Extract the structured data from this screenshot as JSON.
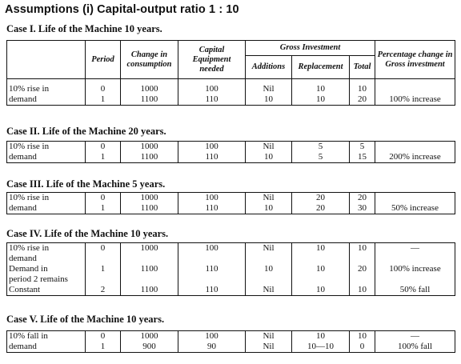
{
  "title": "Assumptions (i) Capital-output ratio 1 : 10",
  "columns": {
    "period": "Period",
    "change": "Change in consumption",
    "capital": "Capital Equipment needed",
    "gross": "Gross Investment",
    "additions": "Additions",
    "replacement": "Replacement",
    "total": "Total",
    "percentage": "Percentage change in Gross investment"
  },
  "cases": [
    {
      "title": "Case I. Life of the Machine 10 years.",
      "rows": [
        {
          "desc": "10% rise in",
          "period": "0",
          "change": "1000",
          "capital": "100",
          "additions": "Nil",
          "replacement": "10",
          "total": "10",
          "pct": ""
        },
        {
          "desc": "demand",
          "period": "1",
          "change": "1100",
          "capital": "110",
          "additions": "10",
          "replacement": "10",
          "total": "20",
          "pct": "100% increase"
        }
      ]
    },
    {
      "title": "Case II. Life of the Machine 20 years.",
      "rows": [
        {
          "desc": "10% rise in",
          "period": "0",
          "change": "1000",
          "capital": "100",
          "additions": "Nil",
          "replacement": "5",
          "total": "5",
          "pct": ""
        },
        {
          "desc": "demand",
          "period": "1",
          "change": "1100",
          "capital": "110",
          "additions": "10",
          "replacement": "5",
          "total": "15",
          "pct": "200% increase"
        }
      ]
    },
    {
      "title": "Case III. Life of the Machine 5 years.",
      "rows": [
        {
          "desc": "10% rise in",
          "period": "0",
          "change": "1000",
          "capital": "100",
          "additions": "Nil",
          "replacement": "20",
          "total": "20",
          "pct": ""
        },
        {
          "desc": "demand",
          "period": "1",
          "change": "1100",
          "capital": "110",
          "additions": "10",
          "replacement": "20",
          "total": "30",
          "pct": "50% increase"
        }
      ]
    },
    {
      "title": "Case IV. Life of the Machine 10 years.",
      "rows": [
        {
          "desc": "10% rise in",
          "period": "0",
          "change": "1000",
          "capital": "100",
          "additions": "Nil",
          "replacement": "10",
          "total": "10",
          "pct": "—"
        },
        {
          "desc": "demand",
          "period": "",
          "change": "",
          "capital": "",
          "additions": "",
          "replacement": "",
          "total": "",
          "pct": ""
        },
        {
          "desc": "Demand in",
          "period": "1",
          "change": "1100",
          "capital": "110",
          "additions": "10",
          "replacement": "10",
          "total": "20",
          "pct": "100% increase"
        },
        {
          "desc": "period 2 remains",
          "period": "",
          "change": "",
          "capital": "",
          "additions": "",
          "replacement": "",
          "total": "",
          "pct": ""
        },
        {
          "desc": "Constant",
          "period": "2",
          "change": "1100",
          "capital": "110",
          "additions": "Nil",
          "replacement": "10",
          "total": "10",
          "pct": "50% fall"
        }
      ]
    },
    {
      "title": "Case V. Life of the Machine 10 years.",
      "rows": [
        {
          "desc": "10% fall in",
          "period": "0",
          "change": "1000",
          "capital": "100",
          "additions": "Nil",
          "replacement": "10",
          "total": "10",
          "pct": "—"
        },
        {
          "desc": "demand",
          "period": "1",
          "change": "900",
          "capital": "90",
          "additions": "Nil",
          "replacement": "10—10",
          "total": "0",
          "pct": "100% fall"
        }
      ]
    }
  ]
}
